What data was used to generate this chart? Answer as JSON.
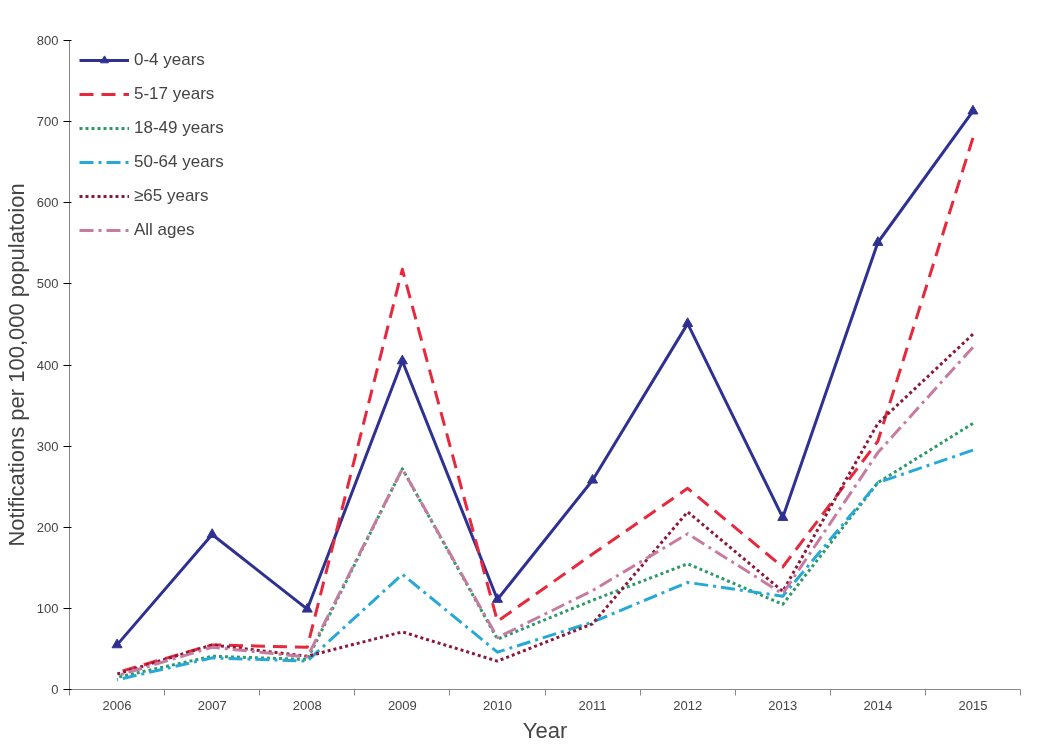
{
  "chart_data": {
    "type": "line",
    "xlabel": "Year",
    "ylabel": "Notifications per 100,000 populatoion",
    "categories": [
      "2006",
      "2007",
      "2008",
      "2009",
      "2010",
      "2011",
      "2012",
      "2013",
      "2014",
      "2015"
    ],
    "ylim": [
      0,
      800
    ],
    "yticks": [
      0,
      100,
      200,
      300,
      400,
      500,
      600,
      700,
      800
    ],
    "grid": false,
    "legend": "top left",
    "series": [
      {
        "name": "0-4 years",
        "color": "#2e3192",
        "line_style": "solid",
        "marker": "triangle",
        "values": [
          55,
          191,
          99,
          405,
          111,
          258,
          451,
          212,
          551,
          713
        ]
      },
      {
        "name": "5-17 years",
        "color": "#e8283c",
        "line_style": "dashed",
        "marker": "none",
        "values": [
          21,
          55,
          52,
          518,
          84,
          167,
          248,
          151,
          306,
          680
        ]
      },
      {
        "name": "18-49 years",
        "color": "#2e9a6a",
        "line_style": "dotted",
        "marker": "none",
        "values": [
          15,
          41,
          37,
          272,
          62,
          110,
          155,
          105,
          255,
          328
        ]
      },
      {
        "name": "50-64 years",
        "color": "#27a9d8",
        "line_style": "dashdot",
        "marker": "none",
        "values": [
          12,
          39,
          35,
          142,
          46,
          83,
          132,
          115,
          255,
          295
        ]
      },
      {
        "name": "≥65 years",
        "color": "#8b1a3a",
        "line_style": "dotted",
        "marker": "none",
        "values": [
          19,
          55,
          41,
          71,
          35,
          81,
          219,
          121,
          328,
          438
        ]
      },
      {
        "name": "All ages",
        "color": "#c77ba0",
        "line_style": "dashdot",
        "marker": "none",
        "values": [
          17,
          52,
          40,
          272,
          64,
          122,
          192,
          118,
          292,
          422
        ]
      }
    ]
  }
}
